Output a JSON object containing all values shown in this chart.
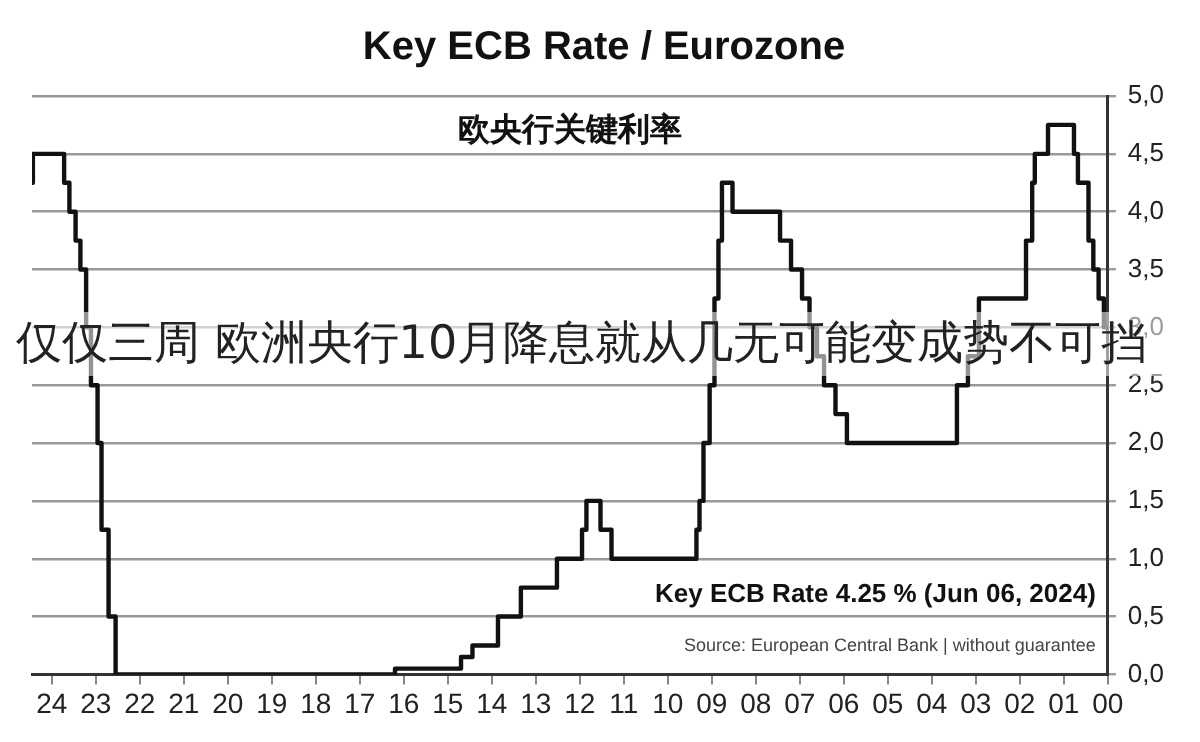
{
  "chart_data": {
    "type": "step",
    "title": "Key ECB Rate / Eurozone",
    "subtitle": "仅仅三周 欧洲央行10月降息就从几无可能变成势不可挡",
    "annotations": [
      "欧央行关键利率",
      "Key ECB Rate 4.25 % (Jun 06, 2024)",
      "Source: European Central Bank | without guarantee"
    ],
    "series": [
      {
        "color": "#111111",
        "x": [
          2000.0,
          2000.09,
          2000.21,
          2000.33,
          2000.44,
          2000.68,
          2000.77,
          2001.36,
          2001.66,
          2001.72,
          2001.86,
          2002.93,
          2003.18,
          2003.43,
          2005.93,
          2006.19,
          2006.45,
          2006.61,
          2006.78,
          2006.95,
          2007.2,
          2007.45,
          2008.53,
          2008.77,
          2008.85,
          2008.94,
          2009.05,
          2009.19,
          2009.28,
          2009.35,
          2011.28,
          2011.53,
          2011.85,
          2011.95,
          2012.52,
          2013.34,
          2013.86,
          2014.44,
          2014.7,
          2016.2,
          2022.55,
          2022.71,
          2022.87,
          2022.96,
          2023.11,
          2023.22,
          2023.35,
          2023.46,
          2023.6,
          2023.72,
          2024.43,
          2024.45
        ],
        "values": [
          3.0,
          3.25,
          3.5,
          3.75,
          4.25,
          4.5,
          4.75,
          4.5,
          4.25,
          3.75,
          3.25,
          2.75,
          2.5,
          2.0,
          2.25,
          2.5,
          2.75,
          3.0,
          3.25,
          3.5,
          3.75,
          4.0,
          4.25,
          3.75,
          3.25,
          2.5,
          2.0,
          1.5,
          1.25,
          1.0,
          1.25,
          1.5,
          1.25,
          1.0,
          0.75,
          0.5,
          0.25,
          0.15,
          0.05,
          0.0,
          0.5,
          1.25,
          2.0,
          2.5,
          3.0,
          3.5,
          3.75,
          4.0,
          4.25,
          4.5,
          4.25,
          4.25
        ]
      }
    ],
    "xlim": [
      2024.45,
      2000
    ],
    "xticks": [
      {
        "value": 2000,
        "label": "00"
      },
      {
        "value": 2001,
        "label": "01"
      },
      {
        "value": 2002,
        "label": "02"
      },
      {
        "value": 2003,
        "label": "03"
      },
      {
        "value": 2004,
        "label": "04"
      },
      {
        "value": 2005,
        "label": "05"
      },
      {
        "value": 2006,
        "label": "06"
      },
      {
        "value": 2007,
        "label": "07"
      },
      {
        "value": 2008,
        "label": "08"
      },
      {
        "value": 2009,
        "label": "09"
      },
      {
        "value": 2010,
        "label": "10"
      },
      {
        "value": 2011,
        "label": "11"
      },
      {
        "value": 2012,
        "label": "12"
      },
      {
        "value": 2013,
        "label": "13"
      },
      {
        "value": 2014,
        "label": "14"
      },
      {
        "value": 2015,
        "label": "15"
      },
      {
        "value": 2016,
        "label": "16"
      },
      {
        "value": 2017,
        "label": "17"
      },
      {
        "value": 2018,
        "label": "18"
      },
      {
        "value": 2019,
        "label": "19"
      },
      {
        "value": 2020,
        "label": "20"
      },
      {
        "value": 2021,
        "label": "21"
      },
      {
        "value": 2022,
        "label": "22"
      },
      {
        "value": 2023,
        "label": "23"
      },
      {
        "value": 2024,
        "label": "24"
      }
    ],
    "ylim": [
      0,
      5
    ],
    "yticks": [
      {
        "value": 0,
        "label": "0,0"
      },
      {
        "value": 0.5,
        "label": "0,5"
      },
      {
        "value": 1,
        "label": "1,0"
      },
      {
        "value": 1.5,
        "label": "1,5"
      },
      {
        "value": 2,
        "label": "2,0"
      },
      {
        "value": 2.5,
        "label": "2,5"
      },
      {
        "value": 3,
        "label": "3,0"
      },
      {
        "value": 3.5,
        "label": "3,5"
      },
      {
        "value": 4,
        "label": "4,0"
      },
      {
        "value": 4.5,
        "label": "4,5"
      },
      {
        "value": 5,
        "label": "5,0"
      }
    ],
    "grid": "y",
    "legend": false
  }
}
